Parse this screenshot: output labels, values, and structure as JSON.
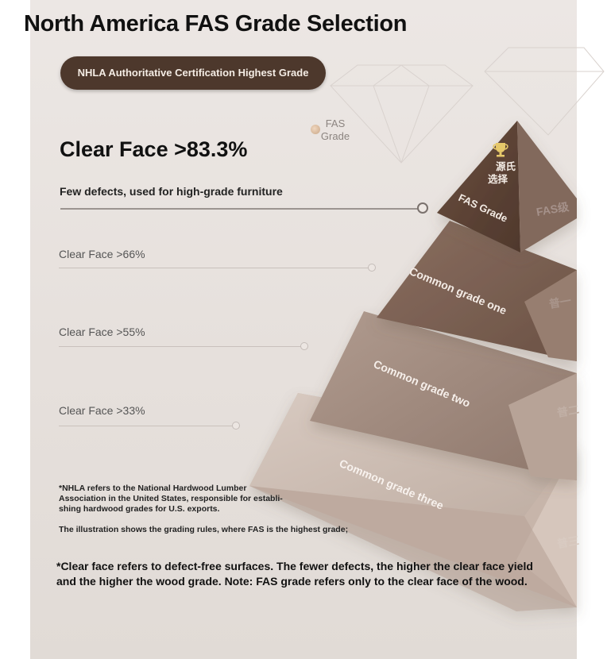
{
  "title": "North America FAS Grade Selection",
  "badge": "NHLA Authoritative Certification Highest Grade",
  "fas_marker": {
    "line1": "FAS",
    "line2": "Grade"
  },
  "highlight": {
    "headline": "Clear Face >83.3%",
    "description": "Few defects, used for high-grade furniture"
  },
  "tiers": [
    {
      "label": "Clear Face >66%"
    },
    {
      "label": "Clear Face >55%"
    },
    {
      "label": "Clear Face >33%"
    }
  ],
  "pyramid": {
    "top": {
      "cn_line1": "源氏",
      "cn_line2": "选择",
      "label": "FAS Grade",
      "side": "FAS级"
    },
    "level1": {
      "label": "Common grade one",
      "side": "普一"
    },
    "level2": {
      "label": "Common grade two",
      "side": "普二"
    },
    "level3": {
      "label": "Common grade three",
      "side": "普三"
    }
  },
  "notes": {
    "nhla": [
      "*NHLA refers to the National Hardwood Lumber",
      "Association in the United States, responsible for establi-",
      "shing hardwood grades for U.S. exports."
    ],
    "illustration": "The illustration shows the grading rules, where FAS is the highest grade;"
  },
  "footnote": "*Clear face refers to defect-free surfaces. The fewer defects, the higher the clear face yield and the higher the wood grade. Note: FAS grade refers only to the clear face of the wood.",
  "colors": {
    "badge_bg": "#4d382c",
    "tier_top": "#5e4537",
    "tier_one": "#7b6052",
    "tier_two": "#a08a7e",
    "tier_three": "#c9b8ad"
  }
}
